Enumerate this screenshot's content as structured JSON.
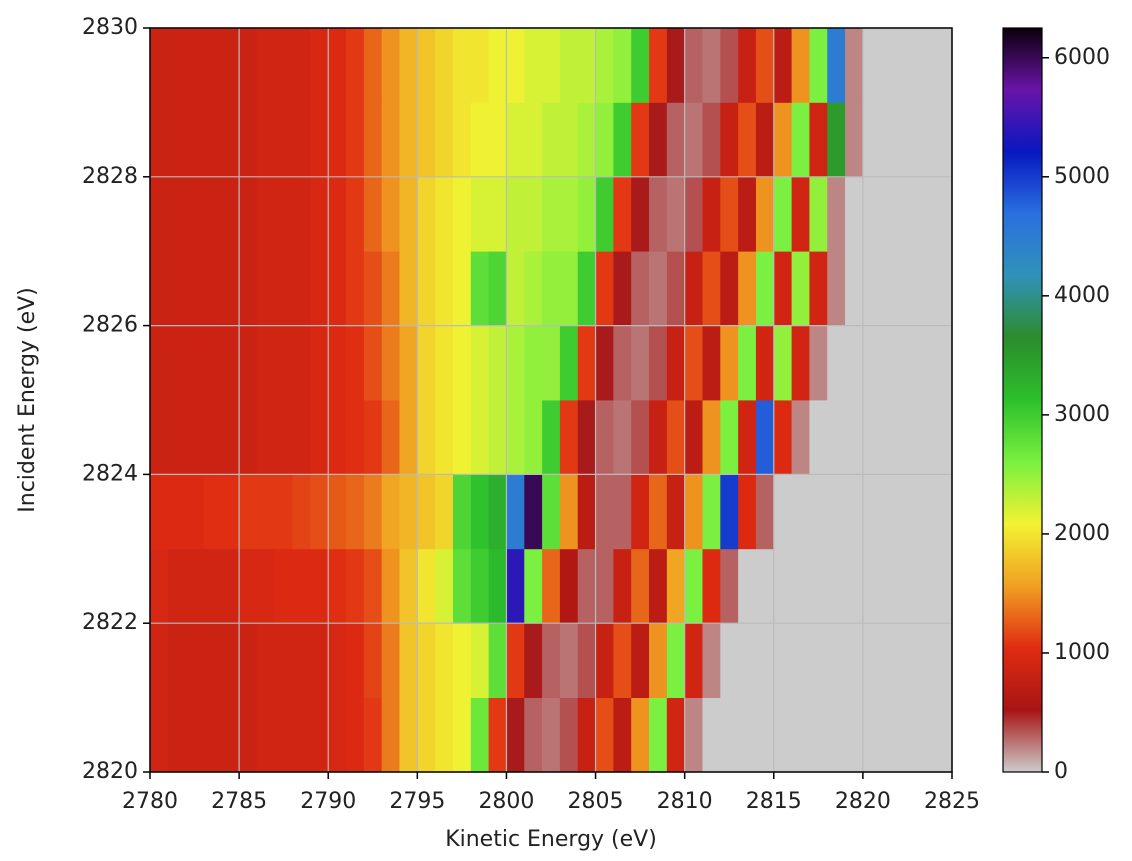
{
  "chart_data": {
    "type": "heatmap",
    "xlabel": "Kinetic Energy (eV)",
    "ylabel": "Incident Energy (eV)",
    "xbins": [
      2780,
      2781,
      2782,
      2783,
      2784,
      2785,
      2786,
      2787,
      2788,
      2789,
      2790,
      2791,
      2792,
      2793,
      2794,
      2795,
      2796,
      2797,
      2798,
      2799,
      2800,
      2801,
      2802,
      2803,
      2804,
      2805,
      2806,
      2807,
      2808,
      2809,
      2810,
      2811,
      2812,
      2813,
      2814,
      2815,
      2816,
      2817,
      2818,
      2819,
      2820,
      2821,
      2822,
      2823,
      2824,
      2825
    ],
    "ybins": [
      2820,
      2821,
      2822,
      2823,
      2824,
      2825,
      2826,
      2827,
      2828,
      2829,
      2830
    ],
    "values": [
      [
        900,
        850,
        850,
        850,
        850,
        850,
        900,
        900,
        900,
        900,
        950,
        1000,
        1100,
        1400,
        1800,
        1900,
        2000,
        2100,
        2700,
        1100,
        500,
        300,
        250,
        350,
        800,
        1200,
        700,
        1500,
        2600,
        900,
        200,
        0,
        0,
        0,
        0,
        0,
        0,
        0,
        0,
        0,
        0,
        0,
        0,
        0,
        0
      ],
      [
        900,
        850,
        850,
        850,
        850,
        850,
        900,
        900,
        900,
        900,
        950,
        1000,
        1150,
        1400,
        1800,
        1900,
        2000,
        2100,
        2200,
        2800,
        1100,
        500,
        300,
        250,
        350,
        800,
        1200,
        700,
        1500,
        2600,
        900,
        200,
        0,
        0,
        0,
        0,
        0,
        0,
        0,
        0,
        0,
        0,
        0,
        0,
        0
      ],
      [
        950,
        900,
        900,
        900,
        900,
        950,
        950,
        1000,
        1000,
        1000,
        1050,
        1100,
        1200,
        1500,
        1800,
        2000,
        2200,
        2800,
        3000,
        3200,
        5400,
        2600,
        1300,
        600,
        300,
        300,
        800,
        1300,
        700,
        1600,
        2600,
        1000,
        300,
        0,
        0,
        0,
        0,
        0,
        0,
        0,
        0,
        0,
        0,
        0,
        0
      ],
      [
        1000,
        1000,
        1000,
        1050,
        1050,
        1100,
        1100,
        1100,
        1150,
        1200,
        1250,
        1300,
        1400,
        1600,
        1700,
        1800,
        1900,
        2900,
        3100,
        3300,
        4500,
        6000,
        2800,
        1500,
        700,
        300,
        300,
        900,
        1300,
        800,
        1500,
        2600,
        5000,
        1000,
        300,
        0,
        0,
        0,
        0,
        0,
        0,
        0,
        0,
        0,
        0
      ],
      [
        850,
        850,
        850,
        850,
        850,
        850,
        900,
        900,
        900,
        950,
        1000,
        1050,
        1100,
        1300,
        1600,
        1900,
        2000,
        2100,
        2200,
        2300,
        2400,
        2500,
        3000,
        1100,
        500,
        300,
        250,
        350,
        800,
        1200,
        700,
        1500,
        2600,
        900,
        4800,
        1000,
        200,
        0,
        0,
        0,
        0,
        0,
        0,
        0,
        0
      ],
      [
        850,
        850,
        850,
        850,
        850,
        850,
        900,
        900,
        900,
        950,
        1000,
        1050,
        1200,
        1400,
        1600,
        1900,
        2000,
        2100,
        2200,
        2300,
        2400,
        2500,
        2500,
        3000,
        1100,
        500,
        300,
        250,
        350,
        800,
        1200,
        700,
        1500,
        2600,
        900,
        2500,
        900,
        200,
        0,
        0,
        0,
        0,
        0,
        0,
        0
      ],
      [
        850,
        850,
        850,
        850,
        850,
        850,
        900,
        900,
        900,
        950,
        1000,
        1100,
        1200,
        1400,
        1700,
        1900,
        2000,
        2100,
        2800,
        2900,
        2300,
        2400,
        2500,
        2500,
        3000,
        1100,
        500,
        300,
        250,
        350,
        800,
        1200,
        700,
        1500,
        2600,
        900,
        2500,
        900,
        200,
        0,
        0,
        0,
        0,
        0,
        0
      ],
      [
        850,
        850,
        850,
        850,
        850,
        850,
        900,
        900,
        900,
        950,
        1000,
        1100,
        1300,
        1500,
        1700,
        1900,
        2000,
        2100,
        2200,
        2200,
        2300,
        2300,
        2400,
        2400,
        2500,
        3000,
        1100,
        500,
        300,
        250,
        350,
        800,
        1200,
        700,
        1500,
        2600,
        900,
        2500,
        200,
        0,
        0,
        0,
        0,
        0,
        0
      ],
      [
        850,
        850,
        850,
        850,
        850,
        850,
        900,
        900,
        900,
        950,
        1000,
        1100,
        1300,
        1500,
        1700,
        1800,
        1900,
        2000,
        2100,
        2100,
        2200,
        2200,
        2300,
        2300,
        2400,
        2500,
        3000,
        1100,
        500,
        300,
        250,
        350,
        800,
        1200,
        700,
        1500,
        2600,
        900,
        3500,
        200,
        0,
        0,
        0,
        0,
        0
      ],
      [
        850,
        850,
        850,
        850,
        850,
        850,
        900,
        900,
        900,
        950,
        1000,
        1100,
        1300,
        1500,
        1700,
        1800,
        1900,
        2000,
        2000,
        2100,
        2100,
        2200,
        2200,
        2300,
        2300,
        2400,
        2500,
        3000,
        1100,
        500,
        300,
        250,
        350,
        800,
        1200,
        700,
        1500,
        2600,
        4500,
        200,
        0,
        0,
        0,
        0,
        0
      ]
    ],
    "xlim": [
      2780,
      2825
    ],
    "ylim": [
      2820,
      2830
    ],
    "xticks": [
      2780,
      2785,
      2790,
      2795,
      2800,
      2805,
      2810,
      2815,
      2820,
      2825
    ],
    "yticks": [
      2820,
      2822,
      2824,
      2826,
      2828,
      2830
    ],
    "zlim": [
      0,
      6250
    ],
    "zticks": [
      0,
      1000,
      2000,
      3000,
      4000,
      5000,
      6000
    ],
    "colormap": [
      "#cccccc",
      "#a81414",
      "#e02c12",
      "#f0a022",
      "#f2f232",
      "#7af040",
      "#2cc02c",
      "#2c8c2c",
      "#3092b8",
      "#2a70e0",
      "#0818c0",
      "#6a14a8",
      "#0a000a"
    ],
    "grid": true
  }
}
